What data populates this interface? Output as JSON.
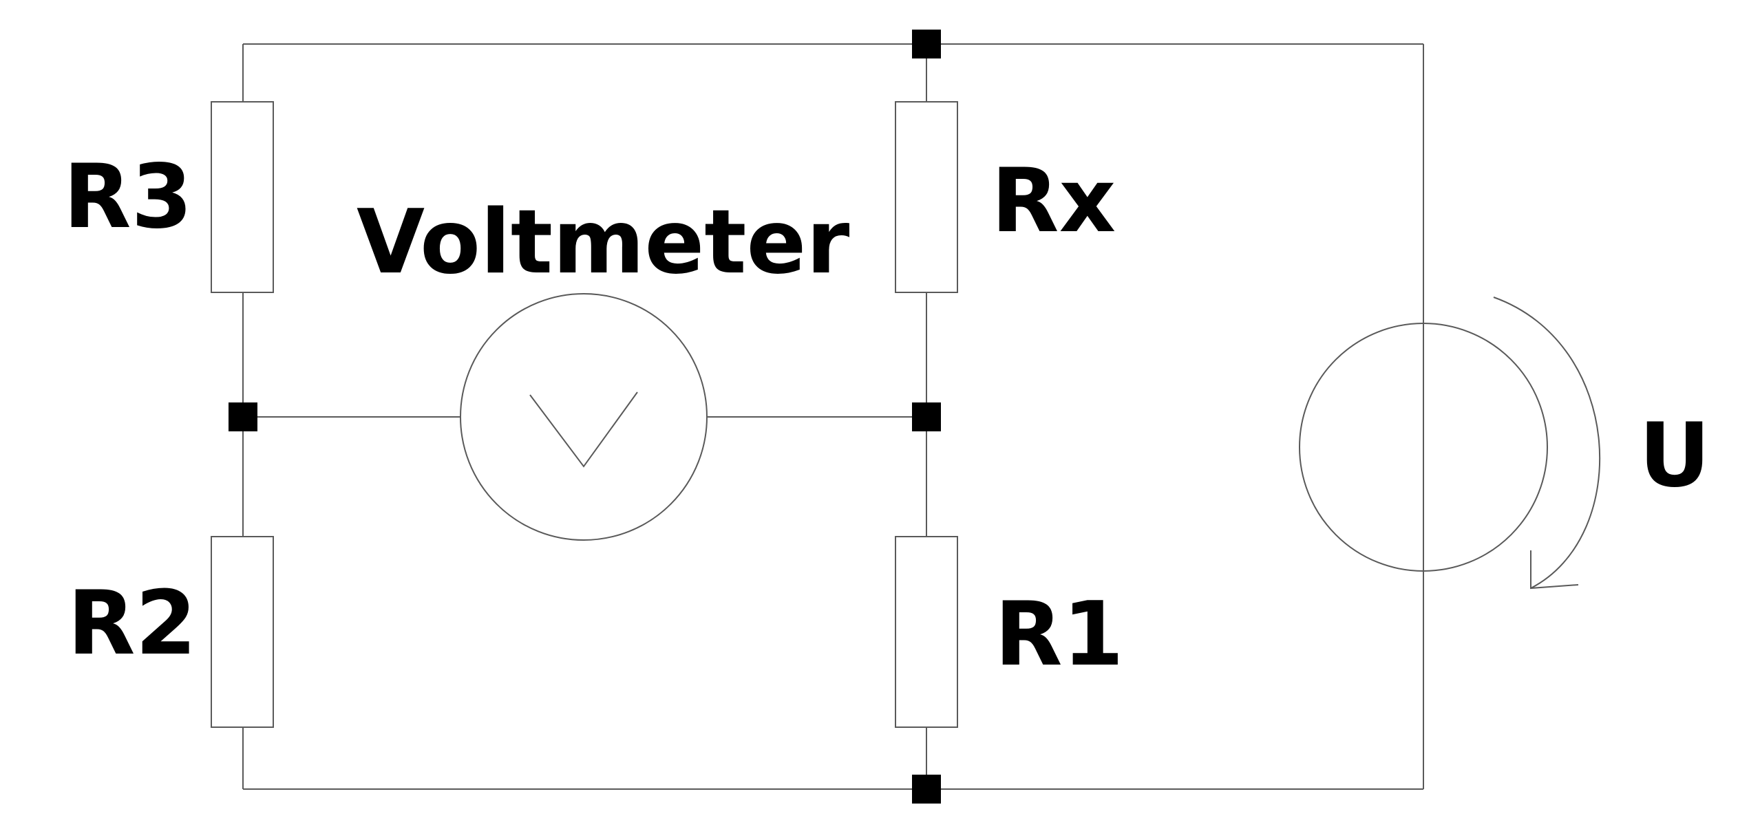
{
  "diagram": {
    "labels": {
      "r3": "R3",
      "r2": "R2",
      "rx": "Rx",
      "r1": "R1",
      "voltmeter": "Voltmeter",
      "source": "U"
    },
    "colors": {
      "wire": "#595959",
      "node": "#000000",
      "text": "#000000",
      "background": "#ffffff"
    },
    "components": [
      {
        "id": "r3",
        "kind": "resistor"
      },
      {
        "id": "rx",
        "kind": "resistor"
      },
      {
        "id": "r2",
        "kind": "resistor"
      },
      {
        "id": "r1",
        "kind": "resistor"
      },
      {
        "id": "voltmeter",
        "kind": "voltmeter"
      },
      {
        "id": "source",
        "kind": "voltage-source"
      }
    ]
  }
}
